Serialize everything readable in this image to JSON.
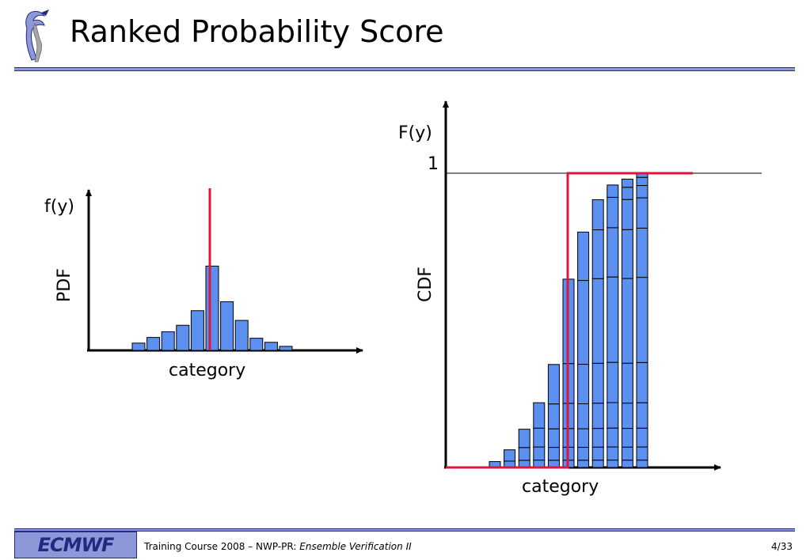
{
  "slide": {
    "title": "Ranked Probability Score"
  },
  "footer": {
    "logo_text": "ECMWF",
    "course_prefix": "Training Course 2008 – NWP-PR: ",
    "course_italic": "Ensemble Verification II",
    "page": "4/33"
  },
  "colors": {
    "bar_fill": "#5b8ff0",
    "bar_stroke": "#000000",
    "observation_line": "#e0143c",
    "rule": "#8e97d8"
  },
  "chart_data": [
    {
      "type": "bar",
      "name": "pdf",
      "ylabel": "PDF",
      "ylabel_top": "f(y)",
      "xlabel": "category",
      "values": [
        0.045,
        0.08,
        0.115,
        0.155,
        0.245,
        0.52,
        0.3,
        0.185,
        0.075,
        0.05,
        0.025
      ],
      "observation_category_index": 5,
      "observation_height": 1.0,
      "ylim": [
        0,
        1.0
      ]
    },
    {
      "type": "bar",
      "name": "cdf",
      "ylabel": "CDF",
      "ylabel_top": "F(y)",
      "y_tick_label": "1",
      "xlabel": "category",
      "values": [
        0.02,
        0.06,
        0.13,
        0.22,
        0.35,
        0.64,
        0.8,
        0.91,
        0.96,
        0.98,
        1.0
      ],
      "observation_category_index": 5,
      "observation_cdf": [
        0,
        0,
        0,
        0,
        0,
        1,
        1,
        1,
        1,
        1,
        1
      ],
      "ylim": [
        0,
        1.0
      ]
    }
  ]
}
